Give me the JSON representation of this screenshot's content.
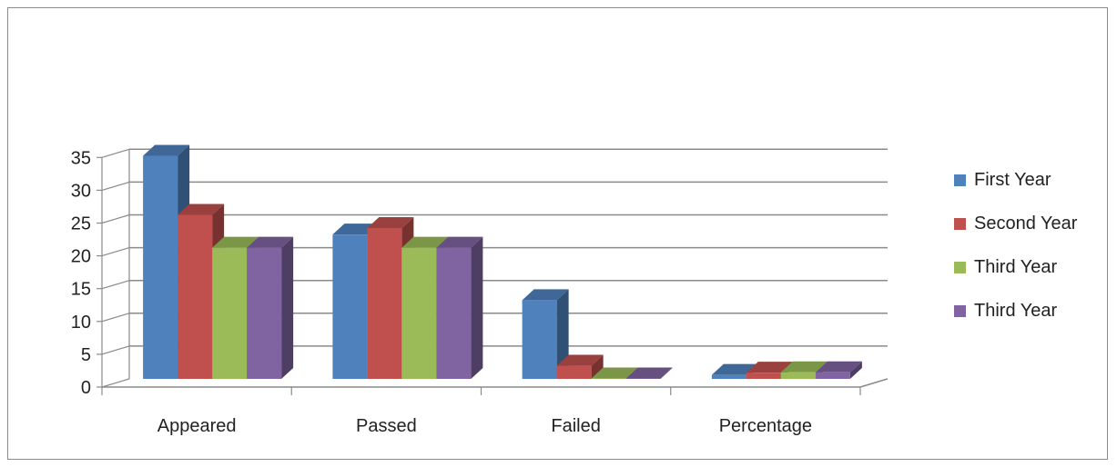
{
  "chart_data": {
    "type": "bar",
    "title": "",
    "xlabel": "",
    "ylabel": "",
    "categories": [
      "Appeared",
      "Passed",
      "Failed",
      "Percentage"
    ],
    "series": [
      {
        "name": "First Year",
        "color": "#4f81bd",
        "values": [
          34,
          22,
          12,
          0.6
        ]
      },
      {
        "name": "Second Year",
        "color": "#c0504d",
        "values": [
          25,
          23,
          2,
          0.95
        ]
      },
      {
        "name": "Third Year",
        "color": "#9bbb59",
        "values": [
          20,
          20,
          0,
          1
        ]
      },
      {
        "name": "Third Year",
        "color": "#8064a2",
        "values": [
          20,
          20,
          0,
          1
        ]
      }
    ],
    "ylim": [
      0,
      35
    ],
    "yticks": [
      0,
      5,
      10,
      15,
      20,
      25,
      30,
      35
    ],
    "grid": true,
    "legend": "right",
    "style": "3d-clustered-column"
  }
}
